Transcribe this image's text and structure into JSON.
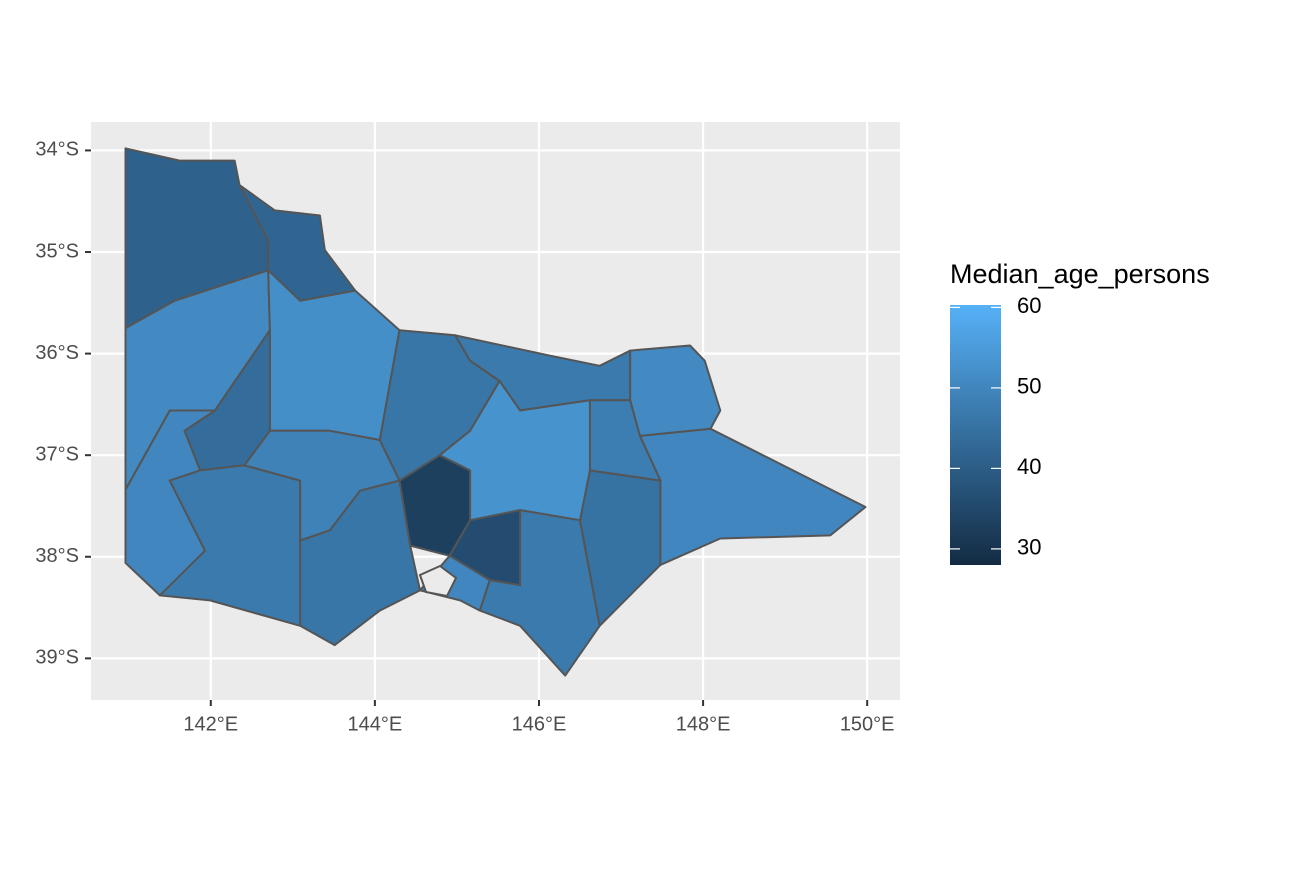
{
  "chart_data": {
    "type": "choropleth",
    "xlim": [
      140.54,
      150.4
    ],
    "ylim": [
      -39.41,
      -33.72
    ],
    "xticks": [
      {
        "value": 142,
        "label": "142°E"
      },
      {
        "value": 144,
        "label": "144°E"
      },
      {
        "value": 146,
        "label": "146°E"
      },
      {
        "value": 148,
        "label": "148°E"
      },
      {
        "value": 150,
        "label": "150°E"
      }
    ],
    "yticks": [
      {
        "value": -34,
        "label": "34°S"
      },
      {
        "value": -35,
        "label": "35°S"
      },
      {
        "value": -36,
        "label": "36°S"
      },
      {
        "value": -37,
        "label": "37°S"
      },
      {
        "value": -38,
        "label": "38°S"
      },
      {
        "value": -39,
        "label": "39°S"
      }
    ],
    "grid": true,
    "legend": {
      "title": "Median_age_persons",
      "limits": [
        28,
        60.3
      ],
      "ticks": [
        30,
        40,
        50,
        60
      ],
      "low_color": "#132b43",
      "high_color": "#56b1f7"
    },
    "border_color": "#555555",
    "regions": [
      {
        "value": 41,
        "coords": [
          [
            140.96,
            -33.98
          ],
          [
            141.62,
            -34.1
          ],
          [
            142.29,
            -34.1
          ],
          [
            142.35,
            -34.34
          ],
          [
            142.7,
            -34.89
          ],
          [
            142.7,
            -35.18
          ],
          [
            141.56,
            -35.48
          ],
          [
            140.96,
            -35.75
          ]
        ]
      },
      {
        "value": 42,
        "coords": [
          [
            142.35,
            -34.34
          ],
          [
            142.78,
            -34.59
          ],
          [
            143.33,
            -34.64
          ],
          [
            143.39,
            -34.98
          ],
          [
            143.76,
            -35.38
          ],
          [
            143.09,
            -35.48
          ],
          [
            142.7,
            -35.18
          ],
          [
            142.7,
            -34.89
          ]
        ]
      },
      {
        "value": 51,
        "coords": [
          [
            140.96,
            -35.75
          ],
          [
            141.56,
            -35.48
          ],
          [
            142.7,
            -35.18
          ],
          [
            142.72,
            -35.77
          ],
          [
            142.05,
            -36.56
          ],
          [
            141.5,
            -36.56
          ],
          [
            140.96,
            -37.34
          ]
        ]
      },
      {
        "value": 52,
        "coords": [
          [
            142.7,
            -35.18
          ],
          [
            143.09,
            -35.48
          ],
          [
            143.76,
            -35.38
          ],
          [
            144.3,
            -35.77
          ],
          [
            144.06,
            -36.85
          ],
          [
            143.45,
            -36.76
          ],
          [
            142.72,
            -36.76
          ],
          [
            142.72,
            -35.77
          ]
        ]
      },
      {
        "value": 44,
        "coords": [
          [
            142.05,
            -36.56
          ],
          [
            142.72,
            -35.77
          ],
          [
            142.72,
            -36.76
          ],
          [
            142.41,
            -37.1
          ],
          [
            141.87,
            -37.15
          ],
          [
            141.68,
            -36.76
          ]
        ]
      },
      {
        "value": 50,
        "coords": [
          [
            140.96,
            -37.34
          ],
          [
            141.5,
            -36.56
          ],
          [
            142.05,
            -36.56
          ],
          [
            141.68,
            -36.76
          ],
          [
            141.87,
            -37.15
          ],
          [
            141.5,
            -37.25
          ],
          [
            141.93,
            -37.94
          ],
          [
            141.38,
            -38.38
          ],
          [
            140.96,
            -38.06
          ]
        ]
      },
      {
        "value": 47,
        "coords": [
          [
            141.5,
            -37.25
          ],
          [
            141.87,
            -37.15
          ],
          [
            142.41,
            -37.1
          ],
          [
            143.09,
            -37.25
          ],
          [
            143.09,
            -37.84
          ],
          [
            143.09,
            -38.68
          ],
          [
            141.99,
            -38.43
          ],
          [
            141.38,
            -38.38
          ],
          [
            141.93,
            -37.94
          ]
        ]
      },
      {
        "value": 49,
        "coords": [
          [
            142.72,
            -36.76
          ],
          [
            143.45,
            -36.76
          ],
          [
            144.06,
            -36.85
          ],
          [
            144.3,
            -37.25
          ],
          [
            143.82,
            -37.35
          ],
          [
            143.45,
            -37.74
          ],
          [
            143.09,
            -37.84
          ],
          [
            143.09,
            -37.25
          ],
          [
            142.41,
            -37.1
          ]
        ]
      },
      {
        "value": 46,
        "coords": [
          [
            143.09,
            -37.84
          ],
          [
            143.45,
            -37.74
          ],
          [
            143.82,
            -37.35
          ],
          [
            144.3,
            -37.25
          ],
          [
            144.43,
            -37.89
          ],
          [
            144.55,
            -38.33
          ],
          [
            144.06,
            -38.53
          ],
          [
            143.51,
            -38.87
          ],
          [
            143.09,
            -38.68
          ]
        ]
      },
      {
        "value": 33,
        "coords": [
          [
            144.3,
            -37.25
          ],
          [
            144.79,
            -37.0
          ],
          [
            145.16,
            -37.15
          ],
          [
            145.16,
            -37.64
          ],
          [
            144.91,
            -37.99
          ],
          [
            144.43,
            -37.89
          ]
        ]
      },
      {
        "value": 36,
        "coords": [
          [
            145.16,
            -37.64
          ],
          [
            145.77,
            -37.54
          ],
          [
            145.77,
            -38.28
          ],
          [
            145.4,
            -38.23
          ],
          [
            144.91,
            -37.99
          ]
        ]
      },
      {
        "value": 50,
        "coords": [
          [
            144.55,
            -38.33
          ],
          [
            144.91,
            -37.99
          ],
          [
            145.4,
            -38.23
          ],
          [
            145.28,
            -38.53
          ],
          [
            145.04,
            -38.43
          ]
        ]
      },
      {
        "value": 47,
        "coords": [
          [
            145.4,
            -38.23
          ],
          [
            145.77,
            -38.28
          ],
          [
            145.77,
            -37.54
          ],
          [
            146.5,
            -37.64
          ],
          [
            146.74,
            -38.68
          ],
          [
            146.32,
            -39.17
          ],
          [
            145.77,
            -38.68
          ],
          [
            145.28,
            -38.53
          ]
        ]
      },
      {
        "value": 45,
        "coords": [
          [
            146.5,
            -37.64
          ],
          [
            146.62,
            -37.15
          ],
          [
            147.48,
            -37.25
          ],
          [
            147.48,
            -38.08
          ],
          [
            146.74,
            -38.68
          ]
        ]
      },
      {
        "value": 50,
        "coords": [
          [
            147.48,
            -37.25
          ],
          [
            147.23,
            -36.81
          ],
          [
            148.09,
            -36.74
          ],
          [
            149.98,
            -37.51
          ],
          [
            149.55,
            -37.79
          ],
          [
            148.21,
            -37.82
          ],
          [
            147.48,
            -38.08
          ]
        ]
      },
      {
        "value": 51,
        "coords": [
          [
            147.11,
            -35.97
          ],
          [
            147.84,
            -35.92
          ],
          [
            148.02,
            -36.07
          ],
          [
            148.21,
            -36.56
          ],
          [
            148.09,
            -36.74
          ],
          [
            147.23,
            -36.81
          ],
          [
            147.11,
            -36.46
          ]
        ]
      },
      {
        "value": 46,
        "coords": [
          [
            144.3,
            -35.77
          ],
          [
            144.98,
            -35.82
          ],
          [
            145.16,
            -36.07
          ],
          [
            145.52,
            -36.27
          ],
          [
            145.16,
            -36.76
          ],
          [
            144.79,
            -37.0
          ],
          [
            144.3,
            -37.25
          ],
          [
            144.06,
            -36.85
          ]
        ]
      },
      {
        "value": 47,
        "coords": [
          [
            144.98,
            -35.82
          ],
          [
            146.13,
            -36.02
          ],
          [
            146.74,
            -36.12
          ],
          [
            147.11,
            -35.97
          ],
          [
            147.11,
            -36.46
          ],
          [
            146.62,
            -36.46
          ],
          [
            145.77,
            -36.56
          ],
          [
            145.52,
            -36.27
          ],
          [
            145.16,
            -36.07
          ]
        ]
      },
      {
        "value": 48,
        "coords": [
          [
            146.62,
            -36.46
          ],
          [
            147.11,
            -36.46
          ],
          [
            147.23,
            -36.81
          ],
          [
            147.48,
            -37.25
          ],
          [
            146.62,
            -37.15
          ]
        ]
      },
      {
        "value": 53,
        "coords": [
          [
            145.52,
            -36.27
          ],
          [
            145.77,
            -36.56
          ],
          [
            146.62,
            -36.46
          ],
          [
            146.62,
            -37.15
          ],
          [
            146.5,
            -37.64
          ],
          [
            145.77,
            -37.54
          ],
          [
            145.16,
            -37.64
          ],
          [
            145.16,
            -37.15
          ],
          [
            144.79,
            -37.0
          ],
          [
            145.16,
            -36.76
          ]
        ]
      }
    ]
  }
}
